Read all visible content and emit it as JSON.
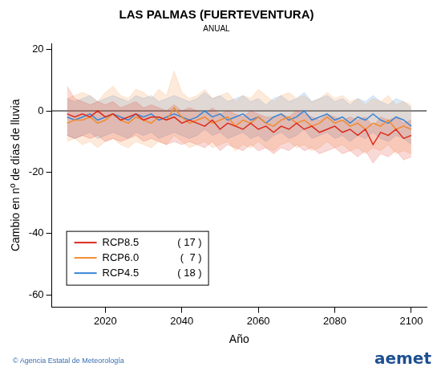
{
  "chart_data": {
    "type": "line",
    "title": "LAS PALMAS (FUERTEVENTURA)",
    "subtitle": "ANUAL",
    "x_label": "Año",
    "y_label": "Cambio en nº de días de lluvia",
    "credit": "© Agencia Estatal de Meteorología",
    "logo": "aemet",
    "legend": "lower left",
    "grid": false,
    "reference_line": 0,
    "xlim": [
      2006,
      2104
    ],
    "xticks": [
      2020,
      2040,
      2060,
      2080,
      2100
    ],
    "ylim": [
      -64,
      22
    ],
    "yticks": [
      -60,
      -40,
      -20,
      0,
      20
    ],
    "x": [
      2010,
      2012,
      2014,
      2016,
      2018,
      2020,
      2022,
      2024,
      2026,
      2028,
      2030,
      2032,
      2034,
      2036,
      2038,
      2040,
      2042,
      2044,
      2046,
      2048,
      2050,
      2052,
      2054,
      2056,
      2058,
      2060,
      2062,
      2064,
      2066,
      2068,
      2070,
      2072,
      2074,
      2076,
      2078,
      2080,
      2082,
      2084,
      2086,
      2088,
      2090,
      2092,
      2094,
      2096,
      2098,
      2100
    ],
    "series": [
      {
        "name": "RCP8.5",
        "members": "( 17 )",
        "color": "#dd2a1b",
        "values": [
          -1,
          -2,
          -1,
          -2,
          0,
          -2,
          -1,
          -3,
          -2,
          -1,
          -3,
          -2,
          -2,
          -3,
          -2,
          -4,
          -3,
          -4,
          -5,
          -3,
          -6,
          -4,
          -5,
          -6,
          -4,
          -6,
          -5,
          -7,
          -5,
          -6,
          -4,
          -6,
          -5,
          -7,
          -6,
          -5,
          -7,
          -6,
          -8,
          -6,
          -11,
          -7,
          -8,
          -6,
          -9,
          -8
        ],
        "upper": [
          8,
          4,
          3,
          2,
          3,
          2,
          3,
          1,
          2,
          3,
          1,
          2,
          1,
          0,
          2,
          0,
          1,
          0,
          -1,
          1,
          -1,
          0,
          -1,
          -2,
          0,
          -1,
          -2,
          -2,
          -1,
          -2,
          0,
          -1,
          -2,
          -3,
          -1,
          -2,
          -3,
          -2,
          -3,
          -2,
          -5,
          -2,
          -3,
          -2,
          -4,
          -3
        ],
        "lower": [
          -8,
          -9,
          -8,
          -9,
          -8,
          -10,
          -9,
          -10,
          -9,
          -8,
          -10,
          -9,
          -10,
          -11,
          -10,
          -11,
          -10,
          -11,
          -12,
          -10,
          -13,
          -11,
          -12,
          -13,
          -11,
          -13,
          -12,
          -14,
          -12,
          -13,
          -11,
          -13,
          -12,
          -14,
          -13,
          -12,
          -14,
          -13,
          -15,
          -13,
          -17,
          -14,
          -15,
          -13,
          -16,
          -15
        ]
      },
      {
        "name": "RCP6.0",
        "members": "(  7 )",
        "color": "#f28a30",
        "values": [
          -4,
          -3,
          -3,
          -2,
          -4,
          -3,
          -1,
          -3,
          -4,
          -2,
          -3,
          -4,
          -2,
          -3,
          1,
          -2,
          -4,
          -3,
          -2,
          -4,
          -3,
          -2,
          -5,
          -3,
          -4,
          -2,
          -4,
          -5,
          -3,
          -2,
          -4,
          -3,
          -5,
          -4,
          -2,
          -4,
          -3,
          -5,
          -4,
          -6,
          -4,
          -5,
          -3,
          -6,
          -5,
          -6
        ],
        "upper": [
          4,
          5,
          6,
          5,
          3,
          6,
          8,
          5,
          4,
          7,
          6,
          4,
          7,
          5,
          13,
          6,
          4,
          5,
          7,
          4,
          5,
          6,
          3,
          5,
          4,
          7,
          5,
          3,
          5,
          6,
          4,
          5,
          3,
          4,
          6,
          4,
          5,
          3,
          4,
          2,
          4,
          3,
          5,
          2,
          3,
          2
        ],
        "lower": [
          -10,
          -9,
          -11,
          -10,
          -12,
          -10,
          -9,
          -11,
          -12,
          -10,
          -11,
          -12,
          -10,
          -11,
          -8,
          -10,
          -12,
          -11,
          -10,
          -12,
          -11,
          -10,
          -13,
          -11,
          -12,
          -10,
          -12,
          -13,
          -11,
          -10,
          -12,
          -11,
          -13,
          -12,
          -10,
          -12,
          -11,
          -13,
          -12,
          -14,
          -12,
          -13,
          -11,
          -14,
          -13,
          -14
        ]
      },
      {
        "name": "RCP4.5",
        "members": "( 18 )",
        "color": "#3a87d6",
        "values": [
          -2,
          -3,
          -2,
          -1,
          -3,
          -2,
          -1,
          -2,
          -3,
          -1,
          -2,
          -1,
          -3,
          -2,
          -1,
          -2,
          -3,
          -2,
          0,
          -2,
          -1,
          -3,
          -2,
          -1,
          -3,
          -2,
          -4,
          -2,
          -1,
          -3,
          -2,
          0,
          -3,
          -2,
          -1,
          -3,
          -2,
          -4,
          -2,
          -3,
          -1,
          -3,
          -4,
          -2,
          -3,
          -5
        ],
        "upper": [
          4,
          3,
          4,
          5,
          3,
          4,
          5,
          4,
          3,
          5,
          4,
          5,
          3,
          4,
          5,
          4,
          3,
          4,
          6,
          4,
          5,
          3,
          4,
          5,
          3,
          4,
          2,
          4,
          5,
          3,
          4,
          6,
          3,
          4,
          5,
          3,
          4,
          2,
          4,
          3,
          5,
          3,
          2,
          4,
          3,
          1
        ],
        "lower": [
          -8,
          -9,
          -8,
          -7,
          -9,
          -8,
          -7,
          -8,
          -9,
          -7,
          -8,
          -7,
          -9,
          -8,
          -7,
          -8,
          -9,
          -8,
          -6,
          -8,
          -7,
          -9,
          -8,
          -7,
          -9,
          -8,
          -10,
          -8,
          -7,
          -9,
          -8,
          -6,
          -9,
          -8,
          -7,
          -9,
          -8,
          -10,
          -8,
          -9,
          -7,
          -9,
          -10,
          -8,
          -9,
          -11
        ]
      }
    ]
  }
}
